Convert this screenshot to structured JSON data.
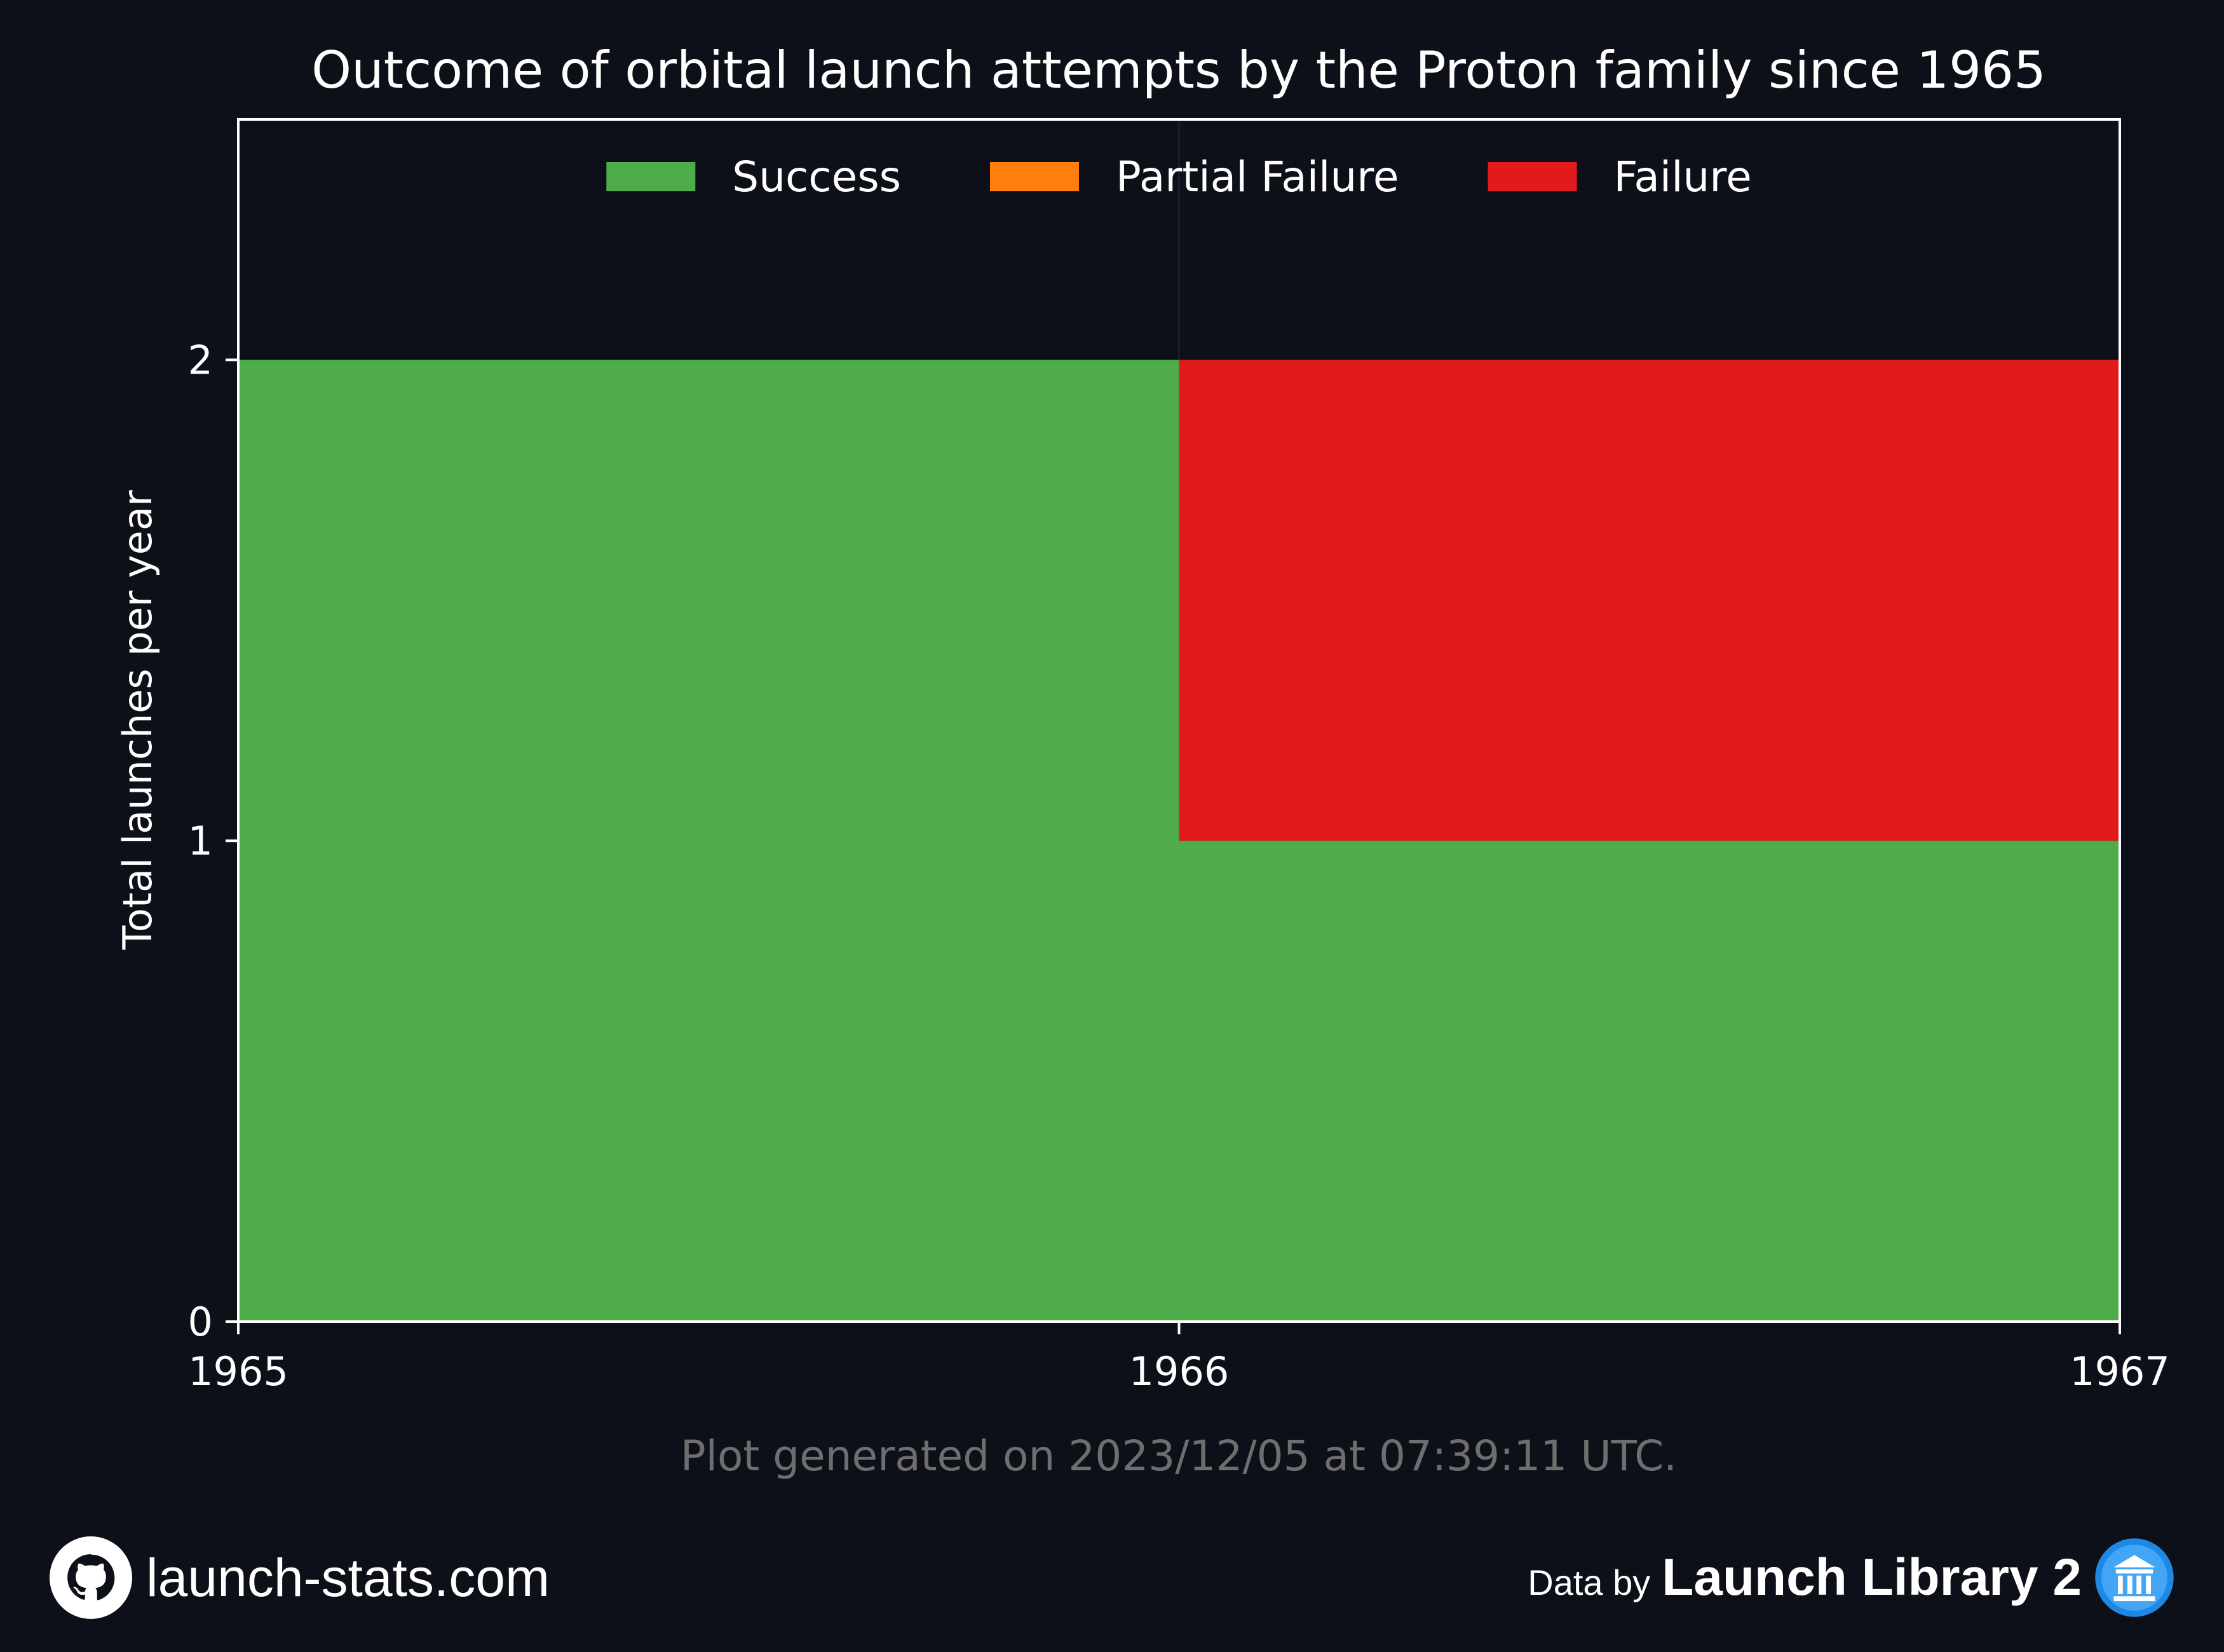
{
  "chart_data": {
    "type": "area",
    "stacked": true,
    "step": true,
    "title": "Outcome of orbital launch attempts by the Proton family since 1965",
    "xlabel": "",
    "ylabel": "Total launches per year",
    "x": [
      1965,
      1966
    ],
    "xlim": [
      1965,
      1967
    ],
    "ylim": [
      0,
      2.5
    ],
    "xticks": [
      "1965",
      "1966",
      "1967"
    ],
    "yticks": [
      "0",
      "1",
      "2"
    ],
    "legend_position": "top-center",
    "series": [
      {
        "name": "Success",
        "color": "#4eac4b",
        "values": [
          2,
          1
        ]
      },
      {
        "name": "Partial Failure",
        "color": "#ff7f0e",
        "values": [
          0,
          0
        ]
      },
      {
        "name": "Failure",
        "color": "#e31a1c",
        "values": [
          0,
          1
        ]
      }
    ]
  },
  "footnote": "Plot generated on 2023/12/05 at 07:39:11 UTC.",
  "footer": {
    "site": "launch-stats.com",
    "site_icon": "github-icon",
    "data_by": "Data by",
    "library": "Launch Library 2",
    "library_icon": "launch-library-logo-icon"
  },
  "colors": {
    "background": "#0d1018",
    "axes": "#ffffff",
    "text": "#ffffff",
    "muted_text": "#6e6e6e"
  }
}
